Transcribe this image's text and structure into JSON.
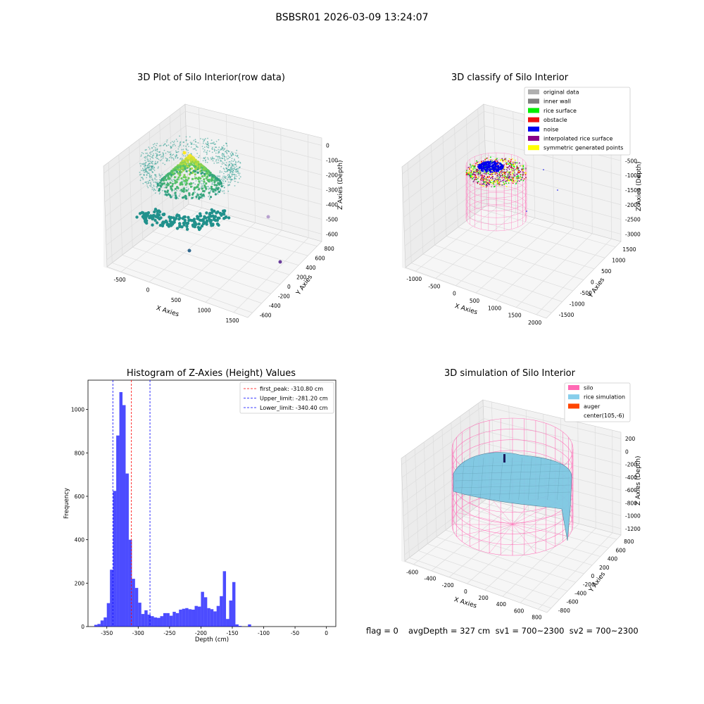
{
  "figure": {
    "suptitle": "BSBSR01 2026-03-09 13:24:07"
  },
  "panels": {
    "raw": {
      "title": "3D Plot of Silo Interior(row data)",
      "xlabel": "X Axies",
      "ylabel": "Y Axies",
      "zlabel": "Z Axies (Depth)",
      "x_ticks": [
        "-500",
        "0",
        "500",
        "1000",
        "1500"
      ],
      "y_ticks": [
        "-600",
        "-400",
        "-200",
        "0",
        "200",
        "400",
        "600",
        "800"
      ],
      "z_ticks": [
        "0",
        "-100",
        "-200",
        "-300",
        "-400",
        "-500",
        "-600"
      ]
    },
    "classify": {
      "title": "3D classify of Silo Interior",
      "xlabel": "X Axies",
      "ylabel": "Y Axies",
      "zlabel": "Z Axies (Depth)",
      "x_ticks": [
        "-1000",
        "-500",
        "0",
        "500",
        "1000",
        "1500",
        "2000"
      ],
      "y_ticks": [
        "-1500",
        "-1000",
        "-500",
        "0",
        "500",
        "1000",
        "1500"
      ],
      "z_ticks": [
        "0",
        "-500",
        "-1000",
        "-1500",
        "-2000",
        "-2500",
        "-3000"
      ],
      "legend": [
        {
          "label": "original data",
          "color": "#b0b0b0"
        },
        {
          "label": "inner wall",
          "color": "#808080"
        },
        {
          "label": "rice surface",
          "color": "#00ee00"
        },
        {
          "label": "obstacle",
          "color": "#ee1111"
        },
        {
          "label": "noise",
          "color": "#0000ee"
        },
        {
          "label": "interpolated rice surface",
          "color": "#880088"
        },
        {
          "label": "symmetric generated points",
          "color": "#ffff00"
        }
      ]
    },
    "simulation": {
      "title": "3D simulation of Silo Interior",
      "xlabel": "X Axies",
      "ylabel": "Y Axies",
      "zlabel": "Z Axies (Depth)",
      "x_ticks": [
        "-600",
        "-400",
        "-200",
        "0",
        "200",
        "400",
        "600",
        "800"
      ],
      "y_ticks": [
        "-800",
        "-600",
        "-400",
        "-200",
        "0",
        "200",
        "400",
        "600",
        "800"
      ],
      "z_ticks": [
        "200",
        "0",
        "-200",
        "-400",
        "-600",
        "-800",
        "-1000",
        "-1200"
      ],
      "legend": [
        {
          "label": "silo",
          "color": "#ff69b4"
        },
        {
          "label": "rice simulation",
          "color": "#87ceeb"
        },
        {
          "label": "auger",
          "color": "#ff4500"
        },
        {
          "label": "center(105,-6)",
          "color": ""
        }
      ]
    }
  },
  "footer": {
    "flag": "flag = 0",
    "summary": "avgDepth = 327 cm  sv1 = 700~2300  sv2 = 700~2300"
  },
  "chart_data": [
    {
      "type": "scatter",
      "title": "3D Plot of Silo Interior(row data)",
      "projection": "3d",
      "xlabel": "X Axies",
      "ylabel": "Y Axies",
      "zlabel": "Z Axies (Depth)",
      "zlim": [
        -600,
        0
      ],
      "note_points": "dense dome of points roughly x -400..600, y -400..600, z -600..-50; outliers near (800,500,-600), (1200,-200,-550)",
      "colormap": "viridis"
    },
    {
      "type": "scatter",
      "title": "3D classify of Silo Interior",
      "projection": "3d",
      "xlabel": "X Axies",
      "ylabel": "Y Axies",
      "zlabel": "Z Axies (Depth)",
      "series": [
        {
          "name": "original data"
        },
        {
          "name": "inner wall"
        },
        {
          "name": "rice surface"
        },
        {
          "name": "obstacle"
        },
        {
          "name": "noise"
        },
        {
          "name": "interpolated rice surface"
        },
        {
          "name": "symmetric generated points"
        }
      ]
    },
    {
      "type": "bar",
      "title": "Histogram of Z-Axies (Height) Values",
      "xlabel": "Depth (cm)",
      "ylabel": "Frequency",
      "xlim": [
        -380,
        15
      ],
      "ylim": [
        0,
        1135
      ],
      "x_ticks": [
        -350,
        -300,
        -250,
        -200,
        -150,
        -100,
        -50,
        0
      ],
      "y_ticks": [
        0,
        200,
        400,
        600,
        800,
        1000
      ],
      "bin_width": 5,
      "bin_start": [
        -370,
        -365,
        -360,
        -355,
        -350,
        -345,
        -340,
        -335,
        -330,
        -325,
        -320,
        -315,
        -310,
        -305,
        -300,
        -295,
        -290,
        -285,
        -280,
        -275,
        -270,
        -265,
        -260,
        -255,
        -250,
        -245,
        -240,
        -235,
        -230,
        -225,
        -220,
        -215,
        -210,
        -205,
        -200,
        -195,
        -190,
        -185,
        -180,
        -175,
        -170,
        -165,
        -160,
        -155,
        -150,
        -145,
        -140,
        -135,
        -130,
        -125,
        -120,
        -115,
        -110,
        -105,
        -100,
        -95,
        -90,
        -85,
        -80,
        -75,
        -70,
        -65,
        -60,
        -55,
        -50,
        -45,
        -40,
        -35,
        -30,
        -25,
        -20,
        -15,
        -10,
        -5,
        0
      ],
      "values": [
        8,
        12,
        28,
        42,
        108,
        262,
        625,
        880,
        1080,
        1020,
        705,
        400,
        220,
        178,
        110,
        58,
        75,
        55,
        48,
        42,
        40,
        48,
        62,
        62,
        50,
        68,
        62,
        78,
        82,
        85,
        80,
        78,
        95,
        92,
        160,
        135,
        85,
        80,
        70,
        95,
        140,
        255,
        35,
        120,
        205,
        10,
        3,
        0,
        0,
        10,
        0
      ],
      "bins_note": "values listed for bins starting at -370 onward in 5 cm steps; first 51 bins",
      "color": "#0000ff",
      "reference_lines": [
        {
          "name": "first_peak",
          "label": "first_peak: -310.80 cm",
          "x": -310.8,
          "color": "#ff0000"
        },
        {
          "name": "Upper_limit",
          "label": "Upper_limit: -281.20 cm",
          "x": -281.2,
          "color": "#0000ff"
        },
        {
          "name": "Lower_limit",
          "label": "Lower_limit: -340.40 cm",
          "x": -340.4,
          "color": "#0000ff"
        }
      ],
      "legend": "top-right"
    },
    {
      "type": "area",
      "title": "3D simulation of Silo Interior",
      "projection": "3d",
      "xlabel": "X Axies",
      "ylabel": "Y Axies",
      "zlabel": "Z Axies (Depth)",
      "series": [
        {
          "name": "silo"
        },
        {
          "name": "rice simulation"
        },
        {
          "name": "auger"
        },
        {
          "name": "center(105,-6)"
        }
      ]
    }
  ]
}
